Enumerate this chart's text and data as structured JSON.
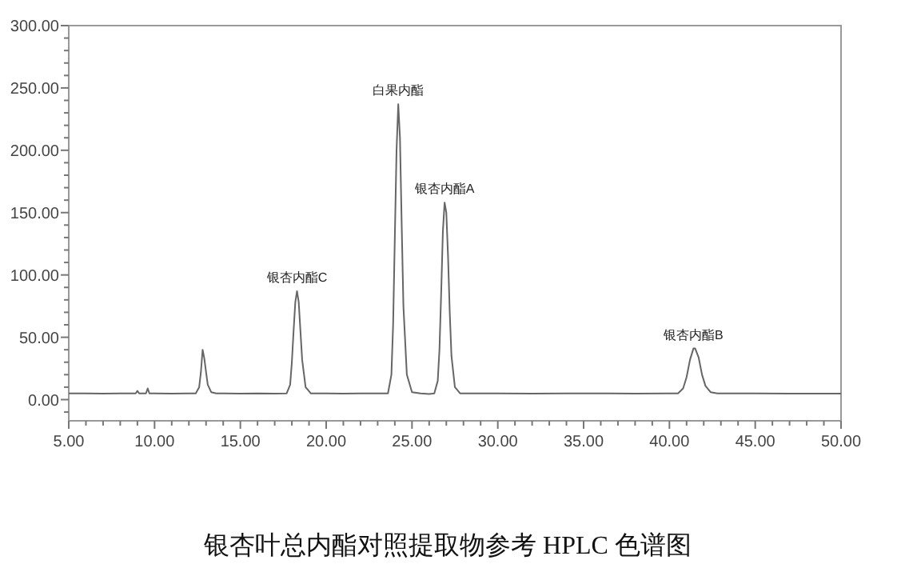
{
  "chart_data": {
    "type": "line",
    "title": "银杏叶总内酯对照提取物参考 HPLC 色谱图",
    "xlim": [
      5,
      50
    ],
    "ylim": [
      -17,
      300
    ],
    "xticks": [
      {
        "value": 5,
        "label": "5.00"
      },
      {
        "value": 6,
        "label": null
      },
      {
        "value": 7,
        "label": null
      },
      {
        "value": 8,
        "label": null
      },
      {
        "value": 9,
        "label": null
      },
      {
        "value": 10,
        "label": "10.00"
      },
      {
        "value": 11,
        "label": null
      },
      {
        "value": 12,
        "label": null
      },
      {
        "value": 13,
        "label": null
      },
      {
        "value": 14,
        "label": null
      },
      {
        "value": 15,
        "label": "15.00"
      },
      {
        "value": 16,
        "label": null
      },
      {
        "value": 17,
        "label": null
      },
      {
        "value": 18,
        "label": null
      },
      {
        "value": 19,
        "label": null
      },
      {
        "value": 20,
        "label": "20.00"
      },
      {
        "value": 21,
        "label": null
      },
      {
        "value": 22,
        "label": null
      },
      {
        "value": 23,
        "label": null
      },
      {
        "value": 24,
        "label": null
      },
      {
        "value": 25,
        "label": "25.00"
      },
      {
        "value": 26,
        "label": null
      },
      {
        "value": 27,
        "label": null
      },
      {
        "value": 28,
        "label": null
      },
      {
        "value": 29,
        "label": null
      },
      {
        "value": 30,
        "label": "30.00"
      },
      {
        "value": 31,
        "label": null
      },
      {
        "value": 32,
        "label": null
      },
      {
        "value": 33,
        "label": null
      },
      {
        "value": 34,
        "label": null
      },
      {
        "value": 35,
        "label": "35.00"
      },
      {
        "value": 36,
        "label": null
      },
      {
        "value": 37,
        "label": null
      },
      {
        "value": 38,
        "label": null
      },
      {
        "value": 39,
        "label": null
      },
      {
        "value": 40,
        "label": "40.00"
      },
      {
        "value": 41,
        "label": null
      },
      {
        "value": 42,
        "label": null
      },
      {
        "value": 43,
        "label": null
      },
      {
        "value": 44,
        "label": null
      },
      {
        "value": 45,
        "label": "45.00"
      },
      {
        "value": 46,
        "label": null
      },
      {
        "value": 47,
        "label": null
      },
      {
        "value": 48,
        "label": null
      },
      {
        "value": 49,
        "label": null
      },
      {
        "value": 50,
        "label": "50.00"
      }
    ],
    "yticks": [
      {
        "value": -10,
        "label": null
      },
      {
        "value": 0,
        "label": "0.00"
      },
      {
        "value": 10,
        "label": null
      },
      {
        "value": 20,
        "label": null
      },
      {
        "value": 30,
        "label": null
      },
      {
        "value": 40,
        "label": null
      },
      {
        "value": 50,
        "label": "50.00"
      },
      {
        "value": 60,
        "label": null
      },
      {
        "value": 70,
        "label": null
      },
      {
        "value": 80,
        "label": null
      },
      {
        "value": 90,
        "label": null
      },
      {
        "value": 100,
        "label": "100.00"
      },
      {
        "value": 110,
        "label": null
      },
      {
        "value": 120,
        "label": null
      },
      {
        "value": 130,
        "label": null
      },
      {
        "value": 140,
        "label": null
      },
      {
        "value": 150,
        "label": "150.00"
      },
      {
        "value": 160,
        "label": null
      },
      {
        "value": 170,
        "label": null
      },
      {
        "value": 180,
        "label": null
      },
      {
        "value": 190,
        "label": null
      },
      {
        "value": 200,
        "label": "200.00"
      },
      {
        "value": 210,
        "label": null
      },
      {
        "value": 220,
        "label": null
      },
      {
        "value": 230,
        "label": null
      },
      {
        "value": 240,
        "label": null
      },
      {
        "value": 250,
        "label": "250.00"
      },
      {
        "value": 260,
        "label": null
      },
      {
        "value": 270,
        "label": null
      },
      {
        "value": 280,
        "label": null
      },
      {
        "value": 290,
        "label": null
      },
      {
        "value": 300,
        "label": "300.00"
      }
    ],
    "series": [
      {
        "color": "#666666",
        "x": [
          5,
          6,
          7,
          8,
          8.9,
          9.0,
          9.1,
          9.5,
          9.6,
          9.7,
          10,
          11,
          12,
          12.4,
          12.6,
          12.7,
          12.8,
          12.9,
          13.0,
          13.1,
          13.3,
          13.6,
          14,
          15,
          16,
          17,
          17.7,
          17.9,
          18.0,
          18.1,
          18.2,
          18.3,
          18.4,
          18.5,
          18.6,
          18.8,
          19.1,
          20,
          21,
          22,
          23,
          23.6,
          23.8,
          23.9,
          24.0,
          24.1,
          24.2,
          24.3,
          24.4,
          24.5,
          24.7,
          25.0,
          25.5,
          26.0,
          26.3,
          26.5,
          26.6,
          26.7,
          26.8,
          26.9,
          27.0,
          27.1,
          27.2,
          27.3,
          27.5,
          27.8,
          28.5,
          30,
          32,
          34,
          36,
          38,
          40,
          40.5,
          40.8,
          41.0,
          41.2,
          41.4,
          41.5,
          41.7,
          41.9,
          42.1,
          42.4,
          42.8,
          43.5,
          45,
          47,
          50
        ],
        "values": [
          5,
          5,
          4.8,
          5,
          5,
          7,
          5,
          5,
          9,
          5,
          5,
          4.8,
          5,
          5,
          10,
          22,
          40,
          33,
          22,
          12,
          6,
          5,
          5,
          4.8,
          5,
          4.8,
          5,
          12,
          30,
          55,
          78,
          87,
          78,
          55,
          32,
          10,
          5,
          5,
          4.8,
          5,
          5,
          5,
          20,
          60,
          130,
          200,
          237,
          210,
          140,
          75,
          20,
          6,
          5,
          4.5,
          5,
          15,
          40,
          85,
          135,
          158,
          150,
          115,
          70,
          35,
          10,
          5,
          5,
          5,
          4.8,
          5,
          5,
          4.8,
          5,
          5,
          9,
          18,
          32,
          41,
          41,
          34,
          20,
          11,
          6,
          5,
          5,
          5,
          4.8,
          4.8
        ]
      }
    ],
    "annotations": [
      {
        "text": "银杏内酯C",
        "x": 18.3,
        "y": 87
      },
      {
        "text": "白果内酯",
        "x": 24.2,
        "y": 237
      },
      {
        "text": "银杏内酯A",
        "x": 26.9,
        "y": 158
      },
      {
        "text": "银杏内酯B",
        "x": 41.4,
        "y": 41
      }
    ]
  }
}
